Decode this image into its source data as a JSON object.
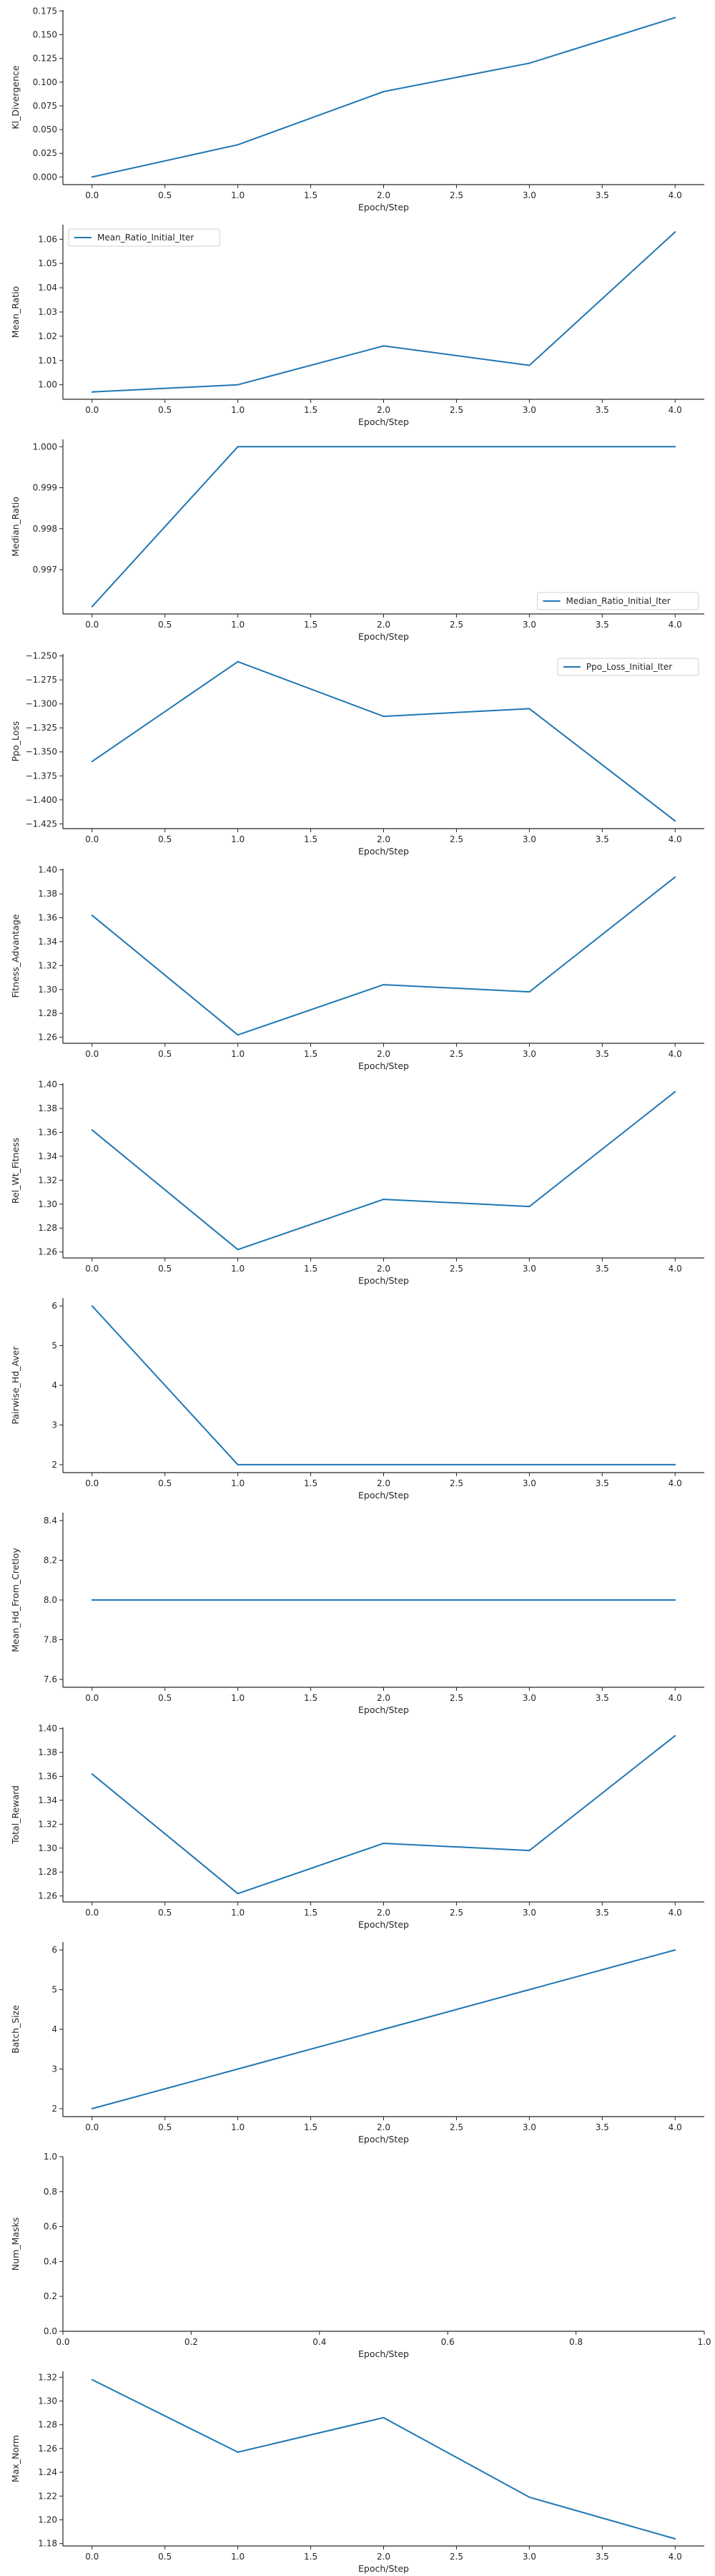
{
  "style": {
    "line_color": "#1f77b4",
    "axis_color": "#262626"
  },
  "chart_data": [
    {
      "type": "line",
      "xlabel": "Epoch/Step",
      "ylabel": "Kl_Divergence",
      "x": [
        0,
        1,
        2,
        3,
        4
      ],
      "series": [
        {
          "values": [
            0.0,
            0.034,
            0.09,
            0.12,
            0.168
          ]
        }
      ],
      "xlim": [
        -0.2,
        4.2
      ],
      "ylim": [
        -0.008,
        0.176
      ],
      "xticks": [
        "0.0",
        "0.5",
        "1.0",
        "1.5",
        "2.0",
        "2.5",
        "3.0",
        "3.5",
        "4.0"
      ],
      "yticks": [
        "0.000",
        "0.025",
        "0.050",
        "0.075",
        "0.100",
        "0.125",
        "0.150",
        "0.175"
      ],
      "legend": null,
      "grid": false
    },
    {
      "type": "line",
      "xlabel": "Epoch/Step",
      "ylabel": "Mean_Ratio",
      "x": [
        0,
        1,
        2,
        3,
        4
      ],
      "series": [
        {
          "name": "Mean_Ratio_Initial_Iter",
          "values": [
            0.997,
            1.0,
            1.016,
            1.008,
            1.063
          ]
        }
      ],
      "xlim": [
        -0.2,
        4.2
      ],
      "ylim": [
        0.994,
        1.066
      ],
      "xticks": [
        "0.0",
        "0.5",
        "1.0",
        "1.5",
        "2.0",
        "2.5",
        "3.0",
        "3.5",
        "4.0"
      ],
      "yticks": [
        "1.00",
        "1.01",
        "1.02",
        "1.03",
        "1.04",
        "1.05",
        "1.06"
      ],
      "legend": "top-left",
      "grid": false
    },
    {
      "type": "line",
      "xlabel": "Epoch/Step",
      "ylabel": "Median_Ratio",
      "x": [
        0,
        1,
        2,
        3,
        4
      ],
      "series": [
        {
          "name": "Median_Ratio_Initial_Iter",
          "values": [
            0.9961,
            1.0,
            1.0,
            1.0,
            1.0
          ]
        }
      ],
      "xlim": [
        -0.2,
        4.2
      ],
      "ylim": [
        0.99592,
        1.00018
      ],
      "xticks": [
        "0.0",
        "0.5",
        "1.0",
        "1.5",
        "2.0",
        "2.5",
        "3.0",
        "3.5",
        "4.0"
      ],
      "yticks": [
        "0.997",
        "0.998",
        "0.999",
        "1.000"
      ],
      "legend": "bottom-right",
      "grid": false
    },
    {
      "type": "line",
      "xlabel": "Epoch/Step",
      "ylabel": "Ppo_Loss",
      "x": [
        0,
        1,
        2,
        3,
        4
      ],
      "series": [
        {
          "name": "Ppo_Loss_Initial_Iter",
          "values": [
            -1.36,
            -1.256,
            -1.313,
            -1.305,
            -1.422
          ]
        }
      ],
      "xlim": [
        -0.2,
        4.2
      ],
      "ylim": [
        -1.43,
        -1.248
      ],
      "xticks": [
        "0.0",
        "0.5",
        "1.0",
        "1.5",
        "2.0",
        "2.5",
        "3.0",
        "3.5",
        "4.0"
      ],
      "yticks": [
        "−1.425",
        "−1.400",
        "−1.375",
        "−1.350",
        "−1.325",
        "−1.300",
        "−1.275",
        "−1.250"
      ],
      "legend": "top-right",
      "grid": false
    },
    {
      "type": "line",
      "xlabel": "Epoch/Step",
      "ylabel": "Fitness_Advantage",
      "x": [
        0,
        1,
        2,
        3,
        4
      ],
      "series": [
        {
          "values": [
            1.362,
            1.262,
            1.304,
            1.298,
            1.394
          ]
        }
      ],
      "xlim": [
        -0.2,
        4.2
      ],
      "ylim": [
        1.255,
        1.401
      ],
      "xticks": [
        "0.0",
        "0.5",
        "1.0",
        "1.5",
        "2.0",
        "2.5",
        "3.0",
        "3.5",
        "4.0"
      ],
      "yticks": [
        "1.26",
        "1.28",
        "1.30",
        "1.32",
        "1.34",
        "1.36",
        "1.38",
        "1.40"
      ],
      "legend": null,
      "grid": false
    },
    {
      "type": "line",
      "xlabel": "Epoch/Step",
      "ylabel": "Rel_Wt_Fitness",
      "x": [
        0,
        1,
        2,
        3,
        4
      ],
      "series": [
        {
          "values": [
            1.362,
            1.262,
            1.304,
            1.298,
            1.394
          ]
        }
      ],
      "xlim": [
        -0.2,
        4.2
      ],
      "ylim": [
        1.255,
        1.401
      ],
      "xticks": [
        "0.0",
        "0.5",
        "1.0",
        "1.5",
        "2.0",
        "2.5",
        "3.0",
        "3.5",
        "4.0"
      ],
      "yticks": [
        "1.26",
        "1.28",
        "1.30",
        "1.32",
        "1.34",
        "1.36",
        "1.38",
        "1.40"
      ],
      "legend": null,
      "grid": false
    },
    {
      "type": "line",
      "xlabel": "Epoch/Step",
      "ylabel": "Pairwise_Hd_Aver",
      "x": [
        0,
        1,
        2,
        3,
        4
      ],
      "series": [
        {
          "values": [
            6,
            2,
            2,
            2,
            2
          ]
        }
      ],
      "xlim": [
        -0.2,
        4.2
      ],
      "ylim": [
        1.8,
        6.2
      ],
      "xticks": [
        "0.0",
        "0.5",
        "1.0",
        "1.5",
        "2.0",
        "2.5",
        "3.0",
        "3.5",
        "4.0"
      ],
      "yticks": [
        "2",
        "3",
        "4",
        "5",
        "6"
      ],
      "legend": null,
      "grid": false
    },
    {
      "type": "line",
      "xlabel": "Epoch/Step",
      "ylabel": "Mean_Hd_From_Cretloy",
      "x": [
        0,
        1,
        2,
        3,
        4
      ],
      "series": [
        {
          "values": [
            8,
            8,
            8,
            8,
            8
          ]
        }
      ],
      "xlim": [
        -0.2,
        4.2
      ],
      "ylim": [
        7.56,
        8.44
      ],
      "xticks": [
        "0.0",
        "0.5",
        "1.0",
        "1.5",
        "2.0",
        "2.5",
        "3.0",
        "3.5",
        "4.0"
      ],
      "yticks": [
        "7.6",
        "7.8",
        "8.0",
        "8.2",
        "8.4"
      ],
      "legend": null,
      "grid": false
    },
    {
      "type": "line",
      "xlabel": "Epoch/Step",
      "ylabel": "Total_Reward",
      "x": [
        0,
        1,
        2,
        3,
        4
      ],
      "series": [
        {
          "values": [
            1.362,
            1.262,
            1.304,
            1.298,
            1.394
          ]
        }
      ],
      "xlim": [
        -0.2,
        4.2
      ],
      "ylim": [
        1.255,
        1.401
      ],
      "xticks": [
        "0.0",
        "0.5",
        "1.0",
        "1.5",
        "2.0",
        "2.5",
        "3.0",
        "3.5",
        "4.0"
      ],
      "yticks": [
        "1.26",
        "1.28",
        "1.30",
        "1.32",
        "1.34",
        "1.36",
        "1.38",
        "1.40"
      ],
      "legend": null,
      "grid": false
    },
    {
      "type": "line",
      "xlabel": "Epoch/Step",
      "ylabel": "Batch_Size",
      "x": [
        0,
        1,
        2,
        3,
        4
      ],
      "series": [
        {
          "values": [
            2,
            3,
            4,
            5,
            6
          ]
        }
      ],
      "xlim": [
        -0.2,
        4.2
      ],
      "ylim": [
        1.8,
        6.2
      ],
      "xticks": [
        "0.0",
        "0.5",
        "1.0",
        "1.5",
        "2.0",
        "2.5",
        "3.0",
        "3.5",
        "4.0"
      ],
      "yticks": [
        "2",
        "3",
        "4",
        "5",
        "6"
      ],
      "legend": null,
      "grid": false
    },
    {
      "type": "line",
      "xlabel": "Epoch/Step",
      "ylabel": "Num_Masks",
      "x": [],
      "series": [],
      "xlim": [
        0,
        1
      ],
      "ylim": [
        0,
        1
      ],
      "xticks": [
        "0.0",
        "0.2",
        "0.4",
        "0.6",
        "0.8",
        "1.0"
      ],
      "yticks": [
        "0.0",
        "0.2",
        "0.4",
        "0.6",
        "0.8",
        "1.0"
      ],
      "legend": null,
      "grid": false
    },
    {
      "type": "line",
      "xlabel": "Epoch/Step",
      "ylabel": "Max_Norm",
      "x": [
        0,
        1,
        2,
        3,
        4
      ],
      "series": [
        {
          "values": [
            1.318,
            1.257,
            1.286,
            1.219,
            1.184
          ]
        }
      ],
      "xlim": [
        -0.2,
        4.2
      ],
      "ylim": [
        1.178,
        1.325
      ],
      "xticks": [
        "0.0",
        "0.5",
        "1.0",
        "1.5",
        "2.0",
        "2.5",
        "3.0",
        "3.5",
        "4.0"
      ],
      "yticks": [
        "1.18",
        "1.20",
        "1.22",
        "1.24",
        "1.26",
        "1.28",
        "1.30",
        "1.32"
      ],
      "legend": null,
      "grid": false
    }
  ]
}
